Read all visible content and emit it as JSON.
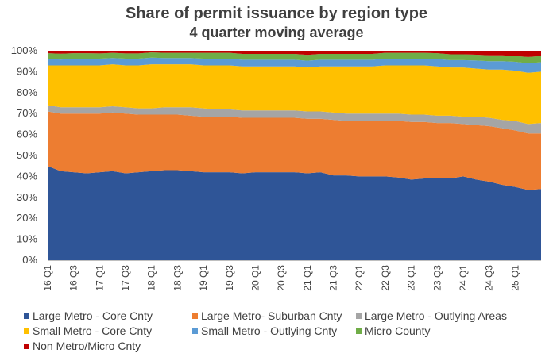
{
  "chart_data": {
    "type": "area",
    "stacked": true,
    "title": "Share of permit issuance by region type",
    "subtitle": "4 quarter moving average",
    "xlabel": "",
    "ylabel": "",
    "ylim": [
      0,
      100
    ],
    "y_ticks": [
      "0%",
      "10%",
      "20%",
      "30%",
      "40%",
      "50%",
      "60%",
      "70%",
      "80%",
      "90%",
      "100%"
    ],
    "x": [
      "16 Q1",
      "16 Q2",
      "16 Q3",
      "16 Q4",
      "17 Q1",
      "17 Q2",
      "17 Q3",
      "17 Q4",
      "18 Q1",
      "18 Q2",
      "18 Q3",
      "18 Q4",
      "19 Q1",
      "19 Q2",
      "19 Q3",
      "19 Q4",
      "20 Q1",
      "20 Q2",
      "20 Q3",
      "20 Q4",
      "21 Q1",
      "21 Q2",
      "21 Q3",
      "21 Q4",
      "22 Q1",
      "22 Q2",
      "22 Q3",
      "22 Q4",
      "23 Q1",
      "23 Q2",
      "23 Q3",
      "23 Q4",
      "24 Q1",
      "24 Q2",
      "24 Q3",
      "24 Q4",
      "25 Q1",
      "25 Q2",
      "25 Q3"
    ],
    "x_tick_labels": [
      "16 Q1",
      "16 Q3",
      "17 Q1",
      "17 Q3",
      "18 Q1",
      "18 Q3",
      "19 Q1",
      "19 Q3",
      "20 Q1",
      "20 Q3",
      "21 Q1",
      "21 Q3",
      "22 Q1",
      "22 Q3",
      "23 Q1",
      "23 Q3",
      "24 Q1",
      "24 Q3",
      "25 Q1"
    ],
    "legend_position": "bottom",
    "series": [
      {
        "name": "Large Metro - Core Cnty",
        "color": "#2F5597",
        "values": [
          45.0,
          42.5,
          42.0,
          41.5,
          42.0,
          42.5,
          41.5,
          42.0,
          42.5,
          43.0,
          43.0,
          42.5,
          42.0,
          42.0,
          42.0,
          41.5,
          42.0,
          42.0,
          42.0,
          42.0,
          41.5,
          42.0,
          40.5,
          40.5,
          40.0,
          40.0,
          40.0,
          39.5,
          38.5,
          39.0,
          39.0,
          39.0,
          40.0,
          38.5,
          37.5,
          36.0,
          35.0,
          33.5,
          34.0
        ]
      },
      {
        "name": "Large Metro- Suburban Cnty",
        "color": "#ED7D31",
        "values": [
          26.0,
          27.5,
          28.0,
          28.5,
          28.0,
          28.0,
          28.5,
          27.5,
          27.0,
          26.5,
          26.5,
          26.5,
          26.5,
          26.5,
          26.5,
          26.5,
          26.0,
          26.0,
          26.0,
          26.0,
          26.0,
          25.5,
          26.5,
          26.0,
          26.5,
          26.5,
          26.5,
          27.0,
          27.5,
          27.0,
          26.5,
          26.5,
          25.0,
          26.0,
          26.5,
          27.0,
          27.0,
          27.0,
          26.5
        ]
      },
      {
        "name": "Large Metro - Outlying Areas",
        "color": "#A5A5A5",
        "values": [
          3.0,
          3.0,
          3.0,
          3.0,
          3.0,
          3.0,
          3.0,
          3.0,
          3.0,
          3.5,
          3.5,
          4.0,
          4.0,
          3.5,
          3.5,
          3.5,
          3.5,
          3.5,
          3.5,
          3.5,
          3.5,
          3.5,
          3.5,
          3.5,
          3.5,
          3.5,
          3.5,
          3.5,
          3.5,
          3.5,
          3.5,
          3.5,
          3.5,
          4.0,
          4.0,
          4.0,
          4.5,
          4.5,
          5.0
        ]
      },
      {
        "name": "Small Metro - Core Cnty",
        "color": "#FFC000",
        "values": [
          19.0,
          20.0,
          20.0,
          20.0,
          20.0,
          20.0,
          20.0,
          20.5,
          21.0,
          20.5,
          20.5,
          20.5,
          20.5,
          21.0,
          21.0,
          21.0,
          21.0,
          21.0,
          21.0,
          21.0,
          21.0,
          21.5,
          22.0,
          22.5,
          22.5,
          22.5,
          23.0,
          23.0,
          23.5,
          23.5,
          23.5,
          23.0,
          23.5,
          23.0,
          23.0,
          24.0,
          24.0,
          24.5,
          24.5
        ]
      },
      {
        "name": "Small Metro - Outlying Cnty",
        "color": "#5B9BD5",
        "values": [
          3.0,
          2.8,
          3.0,
          3.0,
          3.2,
          3.0,
          3.2,
          3.2,
          3.2,
          3.0,
          3.0,
          3.0,
          3.2,
          3.2,
          3.2,
          3.2,
          3.2,
          3.2,
          3.2,
          3.2,
          3.2,
          3.2,
          3.2,
          3.2,
          3.2,
          3.2,
          3.2,
          3.2,
          3.2,
          3.2,
          3.5,
          3.5,
          3.5,
          3.8,
          4.0,
          4.0,
          4.2,
          4.5,
          4.5
        ]
      },
      {
        "name": "Micro County",
        "color": "#70AD47",
        "values": [
          2.8,
          2.8,
          2.8,
          2.8,
          2.5,
          2.5,
          2.5,
          2.5,
          2.5,
          2.5,
          2.5,
          2.5,
          2.8,
          2.8,
          2.8,
          2.8,
          2.8,
          2.8,
          2.8,
          2.8,
          2.8,
          2.8,
          2.8,
          2.8,
          2.8,
          2.8,
          2.8,
          2.8,
          2.8,
          2.8,
          2.8,
          2.8,
          2.8,
          2.8,
          2.8,
          2.8,
          2.8,
          3.0,
          3.0
        ]
      },
      {
        "name": "Non Metro/Micro Cnty",
        "color": "#C00000",
        "values": [
          1.2,
          1.4,
          1.2,
          1.2,
          1.3,
          1.0,
          1.3,
          1.3,
          0.8,
          1.0,
          1.0,
          1.0,
          1.0,
          1.0,
          1.0,
          1.5,
          1.5,
          1.5,
          1.5,
          1.5,
          2.0,
          1.5,
          1.5,
          1.5,
          1.5,
          1.5,
          1.0,
          1.0,
          1.0,
          1.0,
          1.2,
          1.7,
          1.7,
          1.9,
          2.2,
          2.2,
          2.5,
          3.0,
          2.5
        ]
      }
    ]
  }
}
